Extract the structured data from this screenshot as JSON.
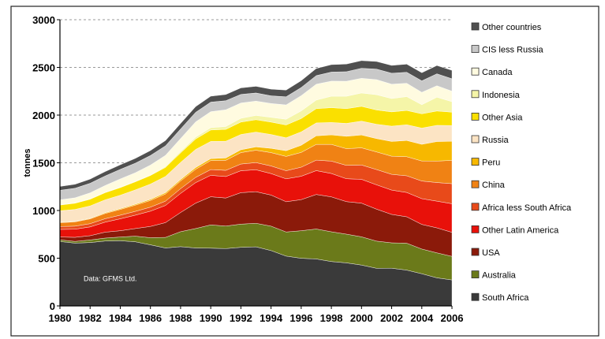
{
  "chart_data": {
    "type": "area",
    "stacked": true,
    "ylabel": "tonnes",
    "ylim": [
      0,
      3000
    ],
    "yticks": [
      0,
      500,
      1000,
      1500,
      2000,
      2500,
      3000
    ],
    "xlim": [
      1980,
      2006
    ],
    "xticks": [
      1980,
      1982,
      1984,
      1986,
      1988,
      1990,
      1992,
      1994,
      1996,
      1998,
      2000,
      2002,
      2004,
      2006
    ],
    "grid": "horizontal-dashed",
    "legend_placement": "right",
    "annotation": "Data: GFMS Ltd.",
    "x": [
      1980,
      1981,
      1982,
      1983,
      1984,
      1985,
      1986,
      1987,
      1988,
      1989,
      1990,
      1991,
      1992,
      1993,
      1994,
      1995,
      1996,
      1997,
      1998,
      1999,
      2000,
      2001,
      2002,
      2003,
      2004,
      2005,
      2006
    ],
    "series": [
      {
        "name": "South Africa",
        "color": "#3a3a3a",
        "values": [
          675,
          658,
          664,
          680,
          683,
          672,
          640,
          607,
          621,
          607,
          605,
          601,
          614,
          619,
          580,
          522,
          499,
          492,
          465,
          451,
          428,
          394,
          395,
          375,
          337,
          294,
          272
        ]
      },
      {
        "name": "Australia",
        "color": "#6b7a1a",
        "values": [
          17,
          18,
          27,
          31,
          39,
          59,
          75,
          111,
          157,
          204,
          244,
          236,
          243,
          247,
          256,
          253,
          289,
          314,
          312,
          301,
          296,
          285,
          266,
          282,
          259,
          262,
          247
        ]
      },
      {
        "name": "USA",
        "color": "#8b1a0a",
        "values": [
          30,
          43,
          45,
          62,
          66,
          80,
          118,
          155,
          201,
          266,
          295,
          294,
          330,
          331,
          326,
          317,
          326,
          362,
          366,
          341,
          353,
          335,
          298,
          277,
          258,
          262,
          252
        ]
      },
      {
        "name": "Other Latin America",
        "color": "#e8110a",
        "values": [
          80,
          85,
          92,
          105,
          125,
          140,
          160,
          180,
          200,
          215,
          225,
          225,
          230,
          230,
          225,
          240,
          245,
          250,
          245,
          240,
          250,
          255,
          255,
          255,
          270,
          280,
          300
        ]
      },
      {
        "name": "Africa less South Africa",
        "color": "#e84a1a",
        "values": [
          30,
          32,
          34,
          36,
          38,
          40,
          42,
          45,
          50,
          55,
          60,
          65,
          70,
          75,
          80,
          85,
          95,
          110,
          130,
          140,
          150,
          160,
          165,
          175,
          185,
          195,
          210
        ]
      },
      {
        "name": "China",
        "color": "#f08214",
        "values": [
          40,
          45,
          50,
          55,
          60,
          65,
          70,
          75,
          80,
          85,
          95,
          105,
          120,
          130,
          140,
          150,
          155,
          165,
          175,
          175,
          180,
          185,
          190,
          200,
          210,
          225,
          245
        ]
      },
      {
        "name": "Peru",
        "color": "#f7b800",
        "values": [
          5,
          5,
          6,
          8,
          9,
          10,
          12,
          14,
          15,
          18,
          20,
          25,
          30,
          35,
          45,
          60,
          75,
          90,
          100,
          130,
          135,
          140,
          155,
          170,
          175,
          205,
          200
        ]
      },
      {
        "name": "Russia",
        "color": "#fce4c4",
        "values": [
          120,
          125,
          130,
          135,
          140,
          150,
          160,
          170,
          180,
          190,
          180,
          175,
          160,
          155,
          145,
          135,
          140,
          135,
          130,
          135,
          145,
          150,
          160,
          165,
          170,
          170,
          165
        ]
      },
      {
        "name": "Other Asia",
        "color": "#fae000",
        "values": [
          60,
          65,
          70,
          75,
          80,
          85,
          90,
          95,
          100,
          110,
          120,
          125,
          130,
          130,
          130,
          135,
          140,
          150,
          155,
          155,
          155,
          150,
          150,
          150,
          150,
          150,
          140
        ]
      },
      {
        "name": "Indonesia",
        "color": "#f5f5a8",
        "values": [
          5,
          5,
          5,
          5,
          5,
          5,
          5,
          10,
          15,
          20,
          25,
          30,
          40,
          45,
          50,
          60,
          80,
          90,
          120,
          130,
          140,
          160,
          140,
          145,
          95,
          145,
          110
        ]
      },
      {
        "name": "Canada",
        "color": "#fffbe0",
        "values": [
          50,
          52,
          62,
          70,
          86,
          90,
          104,
          116,
          135,
          159,
          167,
          175,
          160,
          150,
          145,
          150,
          160,
          166,
          158,
          157,
          154,
          158,
          150,
          140,
          130,
          120,
          110
        ]
      },
      {
        "name": "CIS less Russia",
        "color": "#c8c8c8",
        "values": [
          100,
          100,
          100,
          100,
          100,
          100,
          100,
          100,
          100,
          100,
          100,
          95,
          90,
          85,
          80,
          85,
          85,
          90,
          95,
          100,
          105,
          110,
          115,
          115,
          120,
          125,
          130
        ]
      },
      {
        "name": "Other countries",
        "color": "#505050",
        "values": [
          40,
          42,
          44,
          46,
          48,
          50,
          52,
          55,
          58,
          60,
          62,
          65,
          68,
          70,
          70,
          70,
          72,
          75,
          78,
          80,
          80,
          80,
          82,
          85,
          85,
          87,
          88
        ]
      }
    ]
  }
}
